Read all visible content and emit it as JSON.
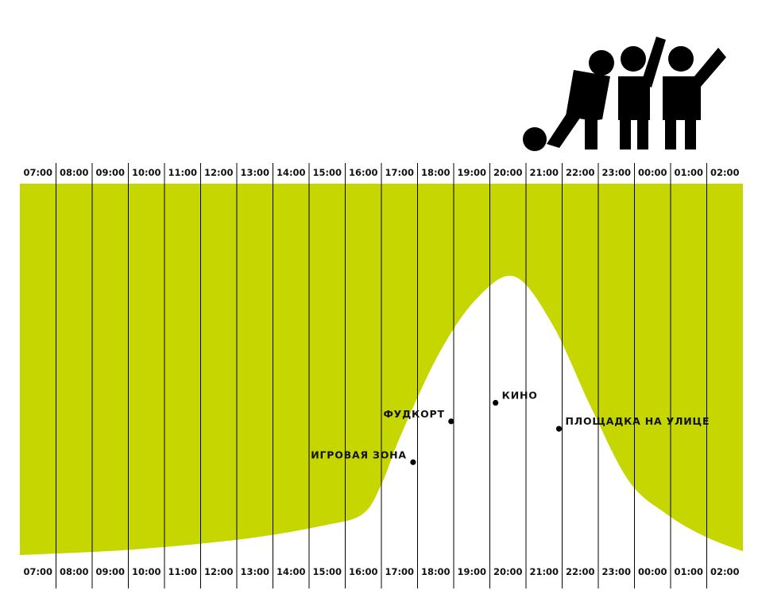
{
  "colors": {
    "accent": "#c5d600",
    "ink": "#000000",
    "background": "#ffffff"
  },
  "illustration": {
    "name": "people-playing-pictogram"
  },
  "chart_data": {
    "type": "area",
    "x_labels": [
      "07:00",
      "08:00",
      "09:00",
      "10:00",
      "11:00",
      "12:00",
      "13:00",
      "14:00",
      "15:00",
      "16:00",
      "17:00",
      "18:00",
      "19:00",
      "20:00",
      "21:00",
      "22:00",
      "23:00",
      "00:00",
      "01:00",
      "02:00"
    ],
    "x_domain": [
      "07:00",
      "02:00"
    ],
    "y_domain": [
      0,
      1
    ],
    "grid": true,
    "curve": [
      {
        "x": "07:00",
        "y": 0.0
      },
      {
        "x": "10:00",
        "y": 0.015
      },
      {
        "x": "13:00",
        "y": 0.045
      },
      {
        "x": "15:00",
        "y": 0.08
      },
      {
        "x": "16:00",
        "y": 0.11
      },
      {
        "x": "16:30",
        "y": 0.19
      },
      {
        "x": "17:00",
        "y": 0.32
      },
      {
        "x": "18:00",
        "y": 0.54
      },
      {
        "x": "19:00",
        "y": 0.69
      },
      {
        "x": "20:00",
        "y": 0.75
      },
      {
        "x": "21:00",
        "y": 0.62
      },
      {
        "x": "22:00",
        "y": 0.4
      },
      {
        "x": "23:00",
        "y": 0.2
      },
      {
        "x": "00:00",
        "y": 0.11
      },
      {
        "x": "01:00",
        "y": 0.05
      },
      {
        "x": "02:00",
        "y": 0.01
      }
    ],
    "annotations": [
      {
        "label": "ИГРОВАЯ ЗОНА",
        "x": "17:20",
        "y": 0.25,
        "side": "left"
      },
      {
        "label": "ФУДКОРТ",
        "x": "18:20",
        "y": 0.36,
        "side": "left"
      },
      {
        "label": "КИНО",
        "x": "19:30",
        "y": 0.41,
        "side": "right"
      },
      {
        "label": "ПЛОЩАДКА НА УЛИЦЕ",
        "x": "21:10",
        "y": 0.34,
        "side": "right"
      }
    ]
  }
}
